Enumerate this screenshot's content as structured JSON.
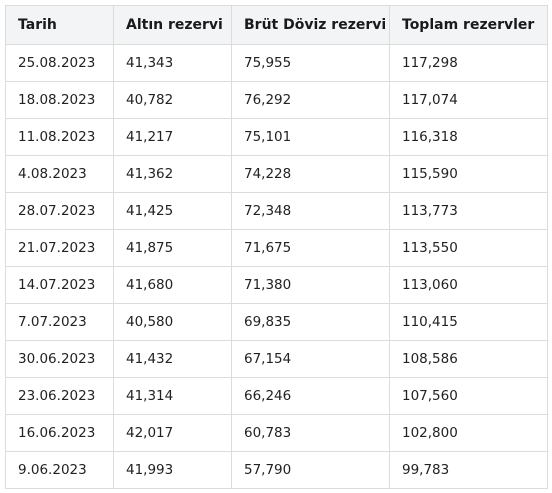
{
  "table": {
    "headers": [
      "Tarih",
      "Altın rezervi",
      "Brüt Döviz rezervi",
      "Toplam rezervler"
    ],
    "rows": [
      [
        "25.08.2023",
        "41,343",
        "75,955",
        "117,298"
      ],
      [
        "18.08.2023",
        "40,782",
        "76,292",
        "117,074"
      ],
      [
        "11.08.2023",
        "41,217",
        "75,101",
        "116,318"
      ],
      [
        "4.08.2023",
        "41,362",
        "74,228",
        "115,590"
      ],
      [
        "28.07.2023",
        "41,425",
        "72,348",
        "113,773"
      ],
      [
        "21.07.2023",
        "41,875",
        "71,675",
        "113,550"
      ],
      [
        "14.07.2023",
        "41,680",
        "71,380",
        "113,060"
      ],
      [
        "7.07.2023",
        "40,580",
        "69,835",
        "110,415"
      ],
      [
        "30.06.2023",
        "41,432",
        "67,154",
        "108,586"
      ],
      [
        "23.06.2023",
        "41,314",
        "66,246",
        "107,560"
      ],
      [
        "16.06.2023",
        "42,017",
        "60,783",
        "102,800"
      ],
      [
        "9.06.2023",
        "41,993",
        "57,790",
        "99,783"
      ]
    ]
  }
}
